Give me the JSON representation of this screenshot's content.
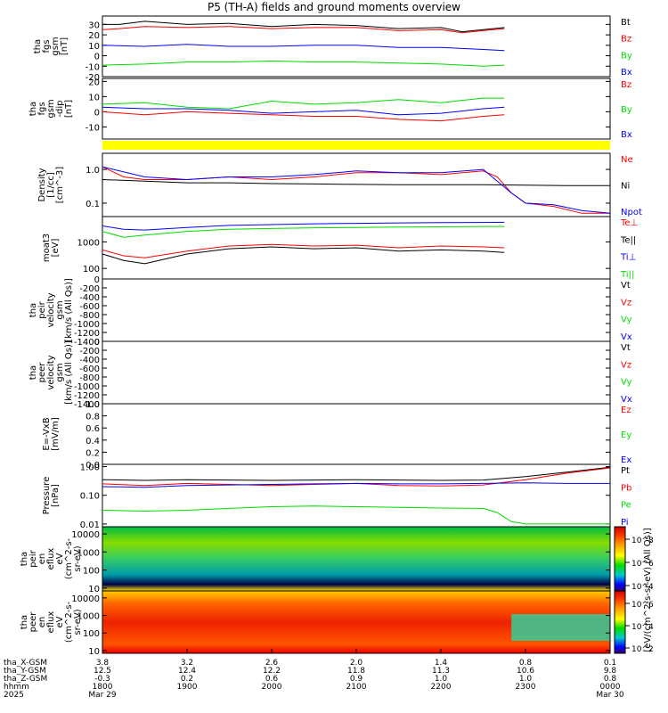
{
  "title": "P5 (TH-A) fields and ground moments overview",
  "colors": {
    "black": "#000000",
    "red": "#ff0000",
    "green": "#00dd00",
    "blue": "#0000ff",
    "yellow": "#ffff00"
  },
  "chart_data": [
    {
      "id": "fgs-gsm",
      "type": "line",
      "ylabel_lines": [
        "tha",
        "fgs",
        "gsm",
        "[nT]"
      ],
      "ylim": [
        -20,
        38
      ],
      "yticks": [
        30,
        20,
        10,
        0,
        -10,
        -20
      ],
      "series": [
        {
          "name": "Bt",
          "color": "black",
          "x": [
            1800,
            1812,
            1830,
            1900,
            1930,
            2000,
            2030,
            2100,
            2130,
            2200,
            2215,
            2230,
            2245
          ],
          "y": [
            30,
            30,
            33,
            30,
            31,
            28,
            30,
            29,
            26,
            27,
            23,
            25,
            27
          ]
        },
        {
          "name": "Bz",
          "color": "red",
          "x": [
            1800,
            1812,
            1830,
            1900,
            1930,
            2000,
            2030,
            2100,
            2130,
            2200,
            2215,
            2230,
            2245
          ],
          "y": [
            25,
            26,
            28,
            27,
            28,
            26,
            27,
            27,
            24,
            25,
            22,
            24,
            26
          ]
        },
        {
          "name": "By",
          "color": "green",
          "x": [
            1800,
            1830,
            1900,
            1930,
            2000,
            2030,
            2100,
            2130,
            2200,
            2230,
            2245
          ],
          "y": [
            -9,
            -8,
            -6,
            -6,
            -5,
            -6,
            -6,
            -7,
            -8,
            -10,
            -9
          ]
        },
        {
          "name": "Bx",
          "color": "blue",
          "x": [
            1800,
            1830,
            1900,
            1930,
            2000,
            2030,
            2100,
            2130,
            2200,
            2230,
            2245
          ],
          "y": [
            10,
            9,
            11,
            9,
            9,
            10,
            10,
            8,
            8,
            6,
            5
          ]
        }
      ]
    },
    {
      "id": "fgs-gsm-dip",
      "type": "line",
      "ylabel_lines": [
        "tha",
        "fgs",
        "gsm",
        "-dip",
        "[nT]"
      ],
      "ylim": [
        -18,
        22
      ],
      "yticks": [
        20,
        10,
        0,
        -10
      ],
      "series": [
        {
          "name": "Bz",
          "color": "red",
          "x": [
            1800,
            1830,
            1900,
            1930,
            2000,
            2030,
            2100,
            2130,
            2200,
            2230,
            2245
          ],
          "y": [
            0,
            -2,
            0,
            -1,
            -2,
            -3,
            -3,
            -5,
            -6,
            -3,
            -2
          ]
        },
        {
          "name": "By",
          "color": "green",
          "x": [
            1800,
            1830,
            1900,
            1930,
            2000,
            2030,
            2100,
            2130,
            2200,
            2230,
            2245
          ],
          "y": [
            5,
            6,
            3,
            2,
            7,
            5,
            6,
            8,
            6,
            9,
            9
          ]
        },
        {
          "name": "Bx",
          "color": "blue",
          "x": [
            1800,
            1830,
            1900,
            1930,
            2000,
            2030,
            2100,
            2130,
            2200,
            2230,
            2245
          ],
          "y": [
            3,
            2,
            2,
            1,
            -1,
            0,
            1,
            -2,
            -1,
            2,
            3
          ]
        }
      ]
    },
    {
      "id": "density",
      "type": "line",
      "log": true,
      "ylabel_lines": [
        "Density",
        "[1/cc]",
        "[cm^-3]"
      ],
      "ylim": [
        0.04,
        3
      ],
      "yticks": [
        1.0,
        0.1
      ],
      "ytick_labels": [
        "1.0",
        "0.1"
      ],
      "series": [
        {
          "name": "Ne",
          "color": "red",
          "x": [
            1800,
            1815,
            1830,
            1900,
            1930,
            2000,
            2030,
            2100,
            2130,
            2200,
            2230,
            2240,
            2250,
            2300,
            2320,
            2340,
            2400
          ],
          "y": [
            1.2,
            0.6,
            0.5,
            0.5,
            0.6,
            0.5,
            0.6,
            0.8,
            0.8,
            0.7,
            0.9,
            0.6,
            0.2,
            0.1,
            0.08,
            0.05,
            0.05
          ]
        },
        {
          "name": "Ni",
          "color": "black",
          "x": [
            1800,
            1830,
            1900,
            1930,
            2000,
            2030,
            2100,
            2130,
            2200,
            2230,
            2300,
            2330,
            2400
          ],
          "y": [
            0.5,
            0.45,
            0.4,
            0.4,
            0.38,
            0.37,
            0.36,
            0.35,
            0.35,
            0.35,
            0.34,
            0.33,
            0.33
          ]
        },
        {
          "name": "Npot",
          "color": "blue",
          "x": [
            1800,
            1830,
            1900,
            1930,
            2000,
            2030,
            2100,
            2130,
            2200,
            2230,
            2250,
            2300,
            2320,
            2340,
            2400
          ],
          "y": [
            1.2,
            0.6,
            0.5,
            0.6,
            0.6,
            0.7,
            0.9,
            0.8,
            0.8,
            1.0,
            0.2,
            0.1,
            0.09,
            0.06,
            0.05
          ]
        }
      ]
    },
    {
      "id": "temperature",
      "type": "line",
      "log": true,
      "ylabel_lines": [
        "moat3",
        "[eV]"
      ],
      "ylim": [
        40,
        9000
      ],
      "yticks": [
        1000,
        100
      ],
      "ytick_labels": [
        "1000",
        "100"
      ],
      "series": [
        {
          "name": "Te⊥",
          "color": "red",
          "x": [
            1800,
            1815,
            1830,
            1900,
            1930,
            2000,
            2030,
            2100,
            2130,
            2200,
            2230,
            2245
          ],
          "y": [
            500,
            300,
            250,
            450,
            700,
            800,
            700,
            750,
            600,
            700,
            650,
            600
          ]
        },
        {
          "name": "Te||",
          "color": "black",
          "x": [
            1800,
            1815,
            1830,
            1900,
            1930,
            2000,
            2030,
            2100,
            2130,
            2200,
            2230,
            2245
          ],
          "y": [
            350,
            200,
            150,
            350,
            550,
            650,
            550,
            600,
            450,
            500,
            450,
            400
          ]
        },
        {
          "name": "Ti⊥",
          "color": "blue",
          "x": [
            1800,
            1815,
            1830,
            1900,
            1930,
            2000,
            2030,
            2100,
            2130,
            2200,
            2230,
            2245
          ],
          "y": [
            4000,
            3000,
            2800,
            3500,
            4200,
            4500,
            4800,
            5000,
            5200,
            5300,
            5400,
            5500
          ]
        },
        {
          "name": "Ti||",
          "color": "green",
          "x": [
            1800,
            1815,
            1830,
            1900,
            1930,
            2000,
            2030,
            2100,
            2130,
            2200,
            2230,
            2245
          ],
          "y": [
            2500,
            1500,
            1800,
            2500,
            3000,
            3200,
            3400,
            3500,
            3600,
            3700,
            3800,
            3800
          ]
        }
      ]
    },
    {
      "id": "peir-velocity",
      "type": "line",
      "ylabel_lines": [
        "tha",
        "peir",
        "velocity",
        "gsm",
        "[km/s (All Qs)]"
      ],
      "ylim": [
        -1400,
        0
      ],
      "yticks": [
        0,
        -200,
        -400,
        -600,
        -800,
        -1000,
        -1200,
        -1400
      ],
      "series": [
        {
          "name": "Vt",
          "color": "black",
          "x": [],
          "y": []
        },
        {
          "name": "Vz",
          "color": "red",
          "x": [],
          "y": []
        },
        {
          "name": "Vy",
          "color": "green",
          "x": [],
          "y": []
        },
        {
          "name": "Vx",
          "color": "blue",
          "x": [],
          "y": []
        }
      ]
    },
    {
      "id": "peer-velocity",
      "type": "line",
      "ylabel_lines": [
        "tha",
        "peer",
        "velocity",
        "gsm",
        "[km/s (All Qs)]"
      ],
      "ylim": [
        -1400,
        0
      ],
      "yticks": [
        0,
        -200,
        -400,
        -600,
        -800,
        -1000,
        -1200,
        -1400
      ],
      "series": [
        {
          "name": "Vt",
          "color": "black",
          "x": [],
          "y": []
        },
        {
          "name": "Vz",
          "color": "red",
          "x": [],
          "y": []
        },
        {
          "name": "Vy",
          "color": "green",
          "x": [],
          "y": []
        },
        {
          "name": "Vx",
          "color": "blue",
          "x": [],
          "y": []
        }
      ]
    },
    {
      "id": "efield",
      "type": "line",
      "ylabel_lines": [
        "E=-VxB",
        "[mV/m]"
      ],
      "ylim": [
        0,
        1
      ],
      "yticks": [
        1.0,
        0.8,
        0.6,
        0.4,
        0.2,
        0.0
      ],
      "ytick_labels": [
        "1.0",
        "0.8",
        "0.6",
        "0.4",
        "0.2",
        "0.0"
      ],
      "series": [
        {
          "name": "Ez",
          "color": "red",
          "x": [],
          "y": []
        },
        {
          "name": "Ey",
          "color": "green",
          "x": [],
          "y": []
        },
        {
          "name": "Ex",
          "color": "blue",
          "x": [],
          "y": []
        }
      ]
    },
    {
      "id": "pressure",
      "type": "line",
      "log": true,
      "ylabel_lines": [
        "Pressure",
        "[nPa]"
      ],
      "ylim": [
        0.008,
        1.2
      ],
      "yticks": [
        1.0,
        0.1,
        0.01
      ],
      "ytick_labels": [
        "1.00",
        "0.10",
        "0.01"
      ],
      "series": [
        {
          "name": "Pt",
          "color": "black",
          "x": [
            1800,
            1830,
            1900,
            1930,
            2000,
            2030,
            2100,
            2130,
            2200,
            2230,
            2300,
            2330,
            2400
          ],
          "y": [
            0.35,
            0.33,
            0.35,
            0.34,
            0.33,
            0.34,
            0.35,
            0.34,
            0.33,
            0.34,
            0.45,
            0.65,
            0.95
          ]
        },
        {
          "name": "Pb",
          "color": "red",
          "x": [
            1800,
            1830,
            1900,
            1930,
            2000,
            2030,
            2100,
            2130,
            2200,
            2230,
            2300,
            2330,
            2400
          ],
          "y": [
            0.25,
            0.22,
            0.26,
            0.24,
            0.22,
            0.24,
            0.26,
            0.22,
            0.21,
            0.23,
            0.35,
            0.6,
            0.9
          ]
        },
        {
          "name": "Pe",
          "color": "green",
          "x": [
            1800,
            1830,
            1900,
            1930,
            2000,
            2030,
            2100,
            2130,
            2200,
            2230,
            2240,
            2250,
            2300,
            2400
          ],
          "y": [
            0.03,
            0.028,
            0.03,
            0.035,
            0.04,
            0.042,
            0.04,
            0.038,
            0.036,
            0.035,
            0.025,
            0.012,
            0.01,
            0.01
          ]
        },
        {
          "name": "Pi",
          "color": "blue",
          "x": [
            1800,
            1830,
            1900,
            1930,
            2000,
            2030,
            2100,
            2130,
            2200,
            2230,
            2300,
            2330,
            2400
          ],
          "y": [
            0.2,
            0.19,
            0.22,
            0.23,
            0.24,
            0.25,
            0.26,
            0.25,
            0.25,
            0.26,
            0.27,
            0.26,
            0.26
          ]
        }
      ]
    },
    {
      "id": "peir-eflux",
      "type": "heatmap",
      "log": true,
      "ylabel_lines": [
        "tha",
        "peir",
        "en",
        "eflux",
        "eV",
        "(cm^2-s-",
        "sr-eV)"
      ],
      "ylim": [
        7,
        25000
      ],
      "yticks": [
        10000,
        1000,
        100,
        10
      ],
      "ytick_labels": [
        "10000",
        "1000",
        "100",
        "10"
      ]
    },
    {
      "id": "peer-eflux",
      "type": "heatmap",
      "log": true,
      "ylabel_lines": [
        "tha",
        "peer",
        "en",
        "eflux",
        "eV",
        "(cm^2-s-",
        "sr-eV)"
      ],
      "ylim": [
        7,
        25000
      ],
      "yticks": [
        10000,
        1000,
        100,
        10
      ],
      "ytick_labels": [
        "10000",
        "1000",
        "100",
        "10"
      ]
    }
  ],
  "colorbars": [
    {
      "tick_labels": [
        "10^8",
        "10^6",
        "10^4"
      ]
    },
    {
      "tick_labels": [
        "10^6",
        "10^4",
        "10^2"
      ]
    }
  ],
  "colorbar_label": "[eV/(cm^2-s-sr-eV) (All Qs)]",
  "xaxis": {
    "row_labels": [
      "tha_X-GSM",
      "tha_Y-GSM",
      "tha_Z-GSM",
      "hhmm",
      "2025"
    ],
    "ticks": [
      {
        "x": 1800,
        "X": "3.8",
        "Y": "12.5",
        "Z": "-0.3",
        "hhmm": "1800",
        "date": "Mar 29"
      },
      {
        "x": 1900,
        "X": "3.2",
        "Y": "12.4",
        "Z": "0.2",
        "hhmm": "1900",
        "date": ""
      },
      {
        "x": 2000,
        "X": "2.6",
        "Y": "12.2",
        "Z": "0.6",
        "hhmm": "2000",
        "date": ""
      },
      {
        "x": 2100,
        "X": "2.0",
        "Y": "11.8",
        "Z": "0.9",
        "hhmm": "2100",
        "date": ""
      },
      {
        "x": 2200,
        "X": "1.4",
        "Y": "11.3",
        "Z": "1.0",
        "hhmm": "2200",
        "date": ""
      },
      {
        "x": 2300,
        "X": "0.8",
        "Y": "10.6",
        "Z": "1.0",
        "hhmm": "2300",
        "date": ""
      },
      {
        "x": 2400,
        "X": "0.1",
        "Y": "9.8",
        "Z": "0.8",
        "hhmm": "0000",
        "date": "Mar 30"
      }
    ]
  }
}
